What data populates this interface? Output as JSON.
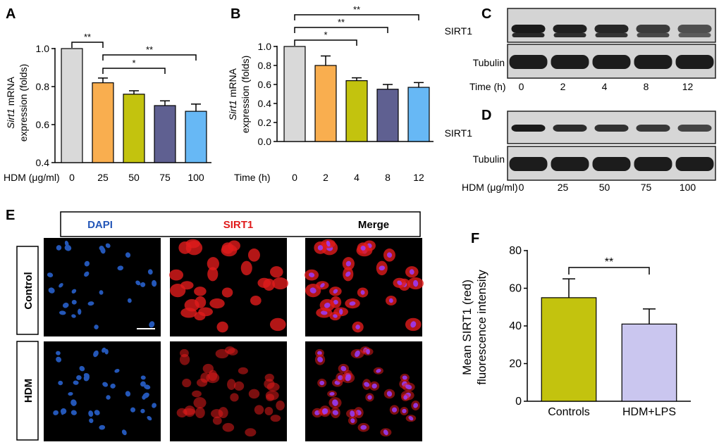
{
  "panel_letters": {
    "a": "A",
    "b": "B",
    "c": "C",
    "d": "D",
    "e": "E",
    "f": "F"
  },
  "colors": {
    "gray": "#d9d9d9",
    "orange": "#f9ae4f",
    "olive": "#c3c30e",
    "navy": "#5f6091",
    "sky": "#67b8f5",
    "lavender": "#cac6ef",
    "dapi": "#2457b8",
    "sirt1": "#e01b1b",
    "black": "#000000"
  },
  "chart_data": [
    {
      "panel": "A",
      "type": "bar",
      "ylabel_italic": "Sirt1",
      "ylabel_rest": " mRNA",
      "ylabel_line2": "expression (folds)",
      "xlabel": "HDM (μg/ml)",
      "categories": [
        "0",
        "25",
        "50",
        "75",
        "100"
      ],
      "values": [
        1.0,
        0.82,
        0.76,
        0.7,
        0.67
      ],
      "errors": [
        0.0,
        0.025,
        0.018,
        0.025,
        0.038
      ],
      "ylim": [
        0.4,
        1.0
      ],
      "yticks": [
        0.4,
        0.6,
        0.8,
        1.0
      ],
      "ytick_labels": [
        "0.4",
        "0.6",
        "0.8",
        "1.0"
      ],
      "significance": [
        {
          "from": 0,
          "to": 1,
          "label": "**"
        },
        {
          "from": 1,
          "to": 4,
          "label": "**"
        },
        {
          "from": 1,
          "to": 3,
          "label": "*"
        }
      ]
    },
    {
      "panel": "B",
      "type": "bar",
      "ylabel_italic": "Sirt1",
      "ylabel_rest": " mRNA",
      "ylabel_line2": "expression (folds)",
      "xlabel": "Time (h)",
      "categories": [
        "0",
        "2",
        "4",
        "8",
        "12"
      ],
      "values": [
        1.0,
        0.8,
        0.64,
        0.55,
        0.57
      ],
      "errors": [
        0.0,
        0.1,
        0.03,
        0.05,
        0.05
      ],
      "ylim": [
        0.0,
        1.0
      ],
      "yticks": [
        0.0,
        0.2,
        0.4,
        0.6,
        0.8,
        1.0
      ],
      "ytick_labels": [
        "0.0",
        "0.2",
        "0.4",
        "0.6",
        "0.8",
        "1.0"
      ],
      "significance": [
        {
          "from": 0,
          "to": 4,
          "label": "**"
        },
        {
          "from": 0,
          "to": 3,
          "label": "**"
        },
        {
          "from": 0,
          "to": 2,
          "label": "*"
        }
      ]
    },
    {
      "panel": "F",
      "type": "bar",
      "ylabel_line1": "Mean SIRT1 (red)",
      "ylabel_line2": "fluorescence intensity",
      "categories": [
        "Controls",
        "HDM+LPS"
      ],
      "values": [
        55,
        41
      ],
      "errors": [
        10,
        8
      ],
      "ylim": [
        0,
        80
      ],
      "yticks": [
        0,
        20,
        40,
        60,
        80
      ],
      "ytick_labels": [
        "0",
        "20",
        "40",
        "60",
        "80"
      ],
      "significance": [
        {
          "from": 0,
          "to": 1,
          "label": "**"
        }
      ]
    }
  ],
  "blot_c": {
    "protein": "SIRT1",
    "loading": "Tubulin",
    "xlabel": "Time (h)",
    "lanes": [
      "0",
      "2",
      "4",
      "8",
      "12"
    ],
    "sirt1_intensity": [
      1.0,
      0.95,
      0.9,
      0.72,
      0.55
    ],
    "tubulin_intensity": [
      1.0,
      1.0,
      1.0,
      1.0,
      1.0
    ]
  },
  "blot_d": {
    "protein": "SIRT1",
    "loading": "Tubulin",
    "xlabel": "HDM (μg/ml)",
    "lanes": [
      "0",
      "25",
      "50",
      "75",
      "100"
    ],
    "sirt1_intensity": [
      1.0,
      0.85,
      0.8,
      0.75,
      0.65
    ],
    "tubulin_intensity": [
      1.0,
      1.0,
      1.0,
      1.0,
      1.0
    ]
  },
  "panel_e": {
    "header": {
      "dapi": "DAPI",
      "sirt1": "SIRT1",
      "merge": "Merge"
    },
    "rows": [
      "Control",
      "HDM"
    ]
  }
}
